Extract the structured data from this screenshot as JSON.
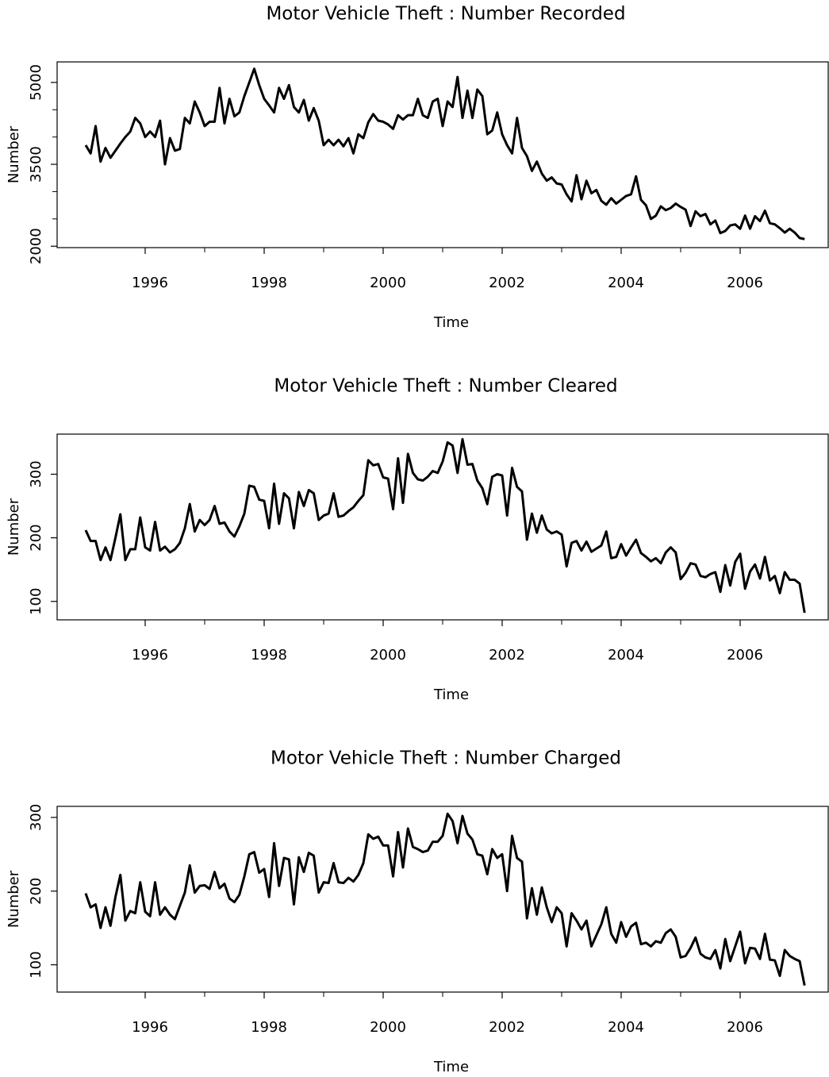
{
  "chart_data": [
    {
      "type": "line",
      "title": "Motor Vehicle Theft : Number Recorded",
      "xlabel": "Time",
      "ylabel": "Number",
      "color": "#000000",
      "xlim": [
        1994.52,
        2007.48
      ],
      "xticks": [
        1996,
        1998,
        2000,
        2002,
        2004,
        2006
      ],
      "xminorticks": [
        1997,
        1999,
        2001,
        2003,
        2005
      ],
      "ylim": [
        1974,
        5376
      ],
      "yticks": [
        2000,
        3500,
        5000
      ],
      "yminorticks": [
        2500,
        3000,
        4000,
        4500
      ],
      "x": [
        1995,
        1995.083,
        1995.167,
        1995.25,
        1995.333,
        1995.417,
        1995.5,
        1995.583,
        1995.667,
        1995.75,
        1995.833,
        1995.917,
        1996,
        1996.083,
        1996.167,
        1996.25,
        1996.333,
        1996.417,
        1996.5,
        1996.583,
        1996.667,
        1996.75,
        1996.833,
        1996.917,
        1997,
        1997.083,
        1997.167,
        1997.25,
        1997.333,
        1997.417,
        1997.5,
        1997.583,
        1997.667,
        1997.75,
        1997.833,
        1997.917,
        1998,
        1998.083,
        1998.167,
        1998.25,
        1998.333,
        1998.417,
        1998.5,
        1998.583,
        1998.667,
        1998.75,
        1998.833,
        1998.917,
        1999,
        1999.083,
        1999.167,
        1999.25,
        1999.333,
        1999.417,
        1999.5,
        1999.583,
        1999.667,
        1999.75,
        1999.833,
        1999.917,
        2000,
        2000.083,
        2000.167,
        2000.25,
        2000.333,
        2000.417,
        2000.5,
        2000.583,
        2000.667,
        2000.75,
        2000.833,
        2000.917,
        2001,
        2001.083,
        2001.167,
        2001.25,
        2001.333,
        2001.417,
        2001.5,
        2001.583,
        2001.667,
        2001.75,
        2001.833,
        2001.917,
        2002,
        2002.083,
        2002.167,
        2002.25,
        2002.333,
        2002.417,
        2002.5,
        2002.583,
        2002.667,
        2002.75,
        2002.833,
        2002.917,
        2003,
        2003.083,
        2003.167,
        2003.25,
        2003.333,
        2003.417,
        2003.5,
        2003.583,
        2003.667,
        2003.75,
        2003.833,
        2003.917,
        2004,
        2004.083,
        2004.167,
        2004.25,
        2004.333,
        2004.417,
        2004.5,
        2004.583,
        2004.667,
        2004.75,
        2004.833,
        2004.917,
        2005,
        2005.083,
        2005.167,
        2005.25,
        2005.333,
        2005.417,
        2005.5,
        2005.583,
        2005.667,
        2005.75,
        2005.833,
        2005.917,
        2006,
        2006.083,
        2006.167,
        2006.25,
        2006.333,
        2006.417,
        2006.5,
        2006.583,
        2006.667,
        2006.75,
        2006.833,
        2006.917,
        2007,
        2007.083
      ],
      "values": [
        3850,
        3700,
        4200,
        3550,
        3800,
        3620,
        3750,
        3880,
        4000,
        4100,
        4350,
        4250,
        4000,
        4100,
        4000,
        4300,
        3500,
        3980,
        3750,
        3780,
        4350,
        4250,
        4650,
        4450,
        4200,
        4280,
        4280,
        4900,
        4250,
        4700,
        4380,
        4450,
        4750,
        5000,
        5250,
        4950,
        4700,
        4580,
        4450,
        4900,
        4700,
        4950,
        4550,
        4450,
        4680,
        4300,
        4530,
        4300,
        3850,
        3950,
        3850,
        3950,
        3830,
        3980,
        3700,
        4050,
        3980,
        4270,
        4420,
        4300,
        4280,
        4230,
        4150,
        4400,
        4320,
        4400,
        4400,
        4700,
        4400,
        4350,
        4650,
        4700,
        4200,
        4650,
        4550,
        5100,
        4350,
        4850,
        4350,
        4870,
        4750,
        4050,
        4120,
        4450,
        4050,
        3850,
        3700,
        4350,
        3800,
        3650,
        3380,
        3550,
        3330,
        3200,
        3260,
        3150,
        3130,
        2950,
        2820,
        3300,
        2860,
        3200,
        2970,
        3030,
        2830,
        2760,
        2880,
        2780,
        2850,
        2920,
        2950,
        3280,
        2850,
        2750,
        2500,
        2560,
        2730,
        2660,
        2700,
        2780,
        2720,
        2670,
        2370,
        2640,
        2550,
        2590,
        2400,
        2470,
        2240,
        2280,
        2380,
        2400,
        2320,
        2560,
        2320,
        2550,
        2460,
        2650,
        2420,
        2400,
        2330,
        2250,
        2320,
        2250,
        2150,
        2130
      ]
    },
    {
      "type": "line",
      "title": "Motor Vehicle Theft : Number Cleared",
      "xlabel": "Time",
      "ylabel": "Number",
      "color": "#000000",
      "xlim": [
        1994.52,
        2007.48
      ],
      "xticks": [
        1996,
        1998,
        2000,
        2002,
        2004,
        2006
      ],
      "xminorticks": [
        1997,
        1999,
        2001,
        2003,
        2005
      ],
      "ylim": [
        71,
        363
      ],
      "yticks": [
        100,
        200,
        300
      ],
      "x": [
        1995,
        1995.083,
        1995.167,
        1995.25,
        1995.333,
        1995.417,
        1995.5,
        1995.583,
        1995.667,
        1995.75,
        1995.833,
        1995.917,
        1996,
        1996.083,
        1996.167,
        1996.25,
        1996.333,
        1996.417,
        1996.5,
        1996.583,
        1996.667,
        1996.75,
        1996.833,
        1996.917,
        1997,
        1997.083,
        1997.167,
        1997.25,
        1997.333,
        1997.417,
        1997.5,
        1997.583,
        1997.667,
        1997.75,
        1997.833,
        1997.917,
        1998,
        1998.083,
        1998.167,
        1998.25,
        1998.333,
        1998.417,
        1998.5,
        1998.583,
        1998.667,
        1998.75,
        1998.833,
        1998.917,
        1999,
        1999.083,
        1999.167,
        1999.25,
        1999.333,
        1999.417,
        1999.5,
        1999.583,
        1999.667,
        1999.75,
        1999.833,
        1999.917,
        2000,
        2000.083,
        2000.167,
        2000.25,
        2000.333,
        2000.417,
        2000.5,
        2000.583,
        2000.667,
        2000.75,
        2000.833,
        2000.917,
        2001,
        2001.083,
        2001.167,
        2001.25,
        2001.333,
        2001.417,
        2001.5,
        2001.583,
        2001.667,
        2001.75,
        2001.833,
        2001.917,
        2002,
        2002.083,
        2002.167,
        2002.25,
        2002.333,
        2002.417,
        2002.5,
        2002.583,
        2002.667,
        2002.75,
        2002.833,
        2002.917,
        2003,
        2003.083,
        2003.167,
        2003.25,
        2003.333,
        2003.417,
        2003.5,
        2003.583,
        2003.667,
        2003.75,
        2003.833,
        2003.917,
        2004,
        2004.083,
        2004.167,
        2004.25,
        2004.333,
        2004.417,
        2004.5,
        2004.583,
        2004.667,
        2004.75,
        2004.833,
        2004.917,
        2005,
        2005.083,
        2005.167,
        2005.25,
        2005.333,
        2005.417,
        2005.5,
        2005.583,
        2005.667,
        2005.75,
        2005.833,
        2005.917,
        2006,
        2006.083,
        2006.167,
        2006.25,
        2006.333,
        2006.417,
        2006.5,
        2006.583,
        2006.667,
        2006.75,
        2006.833,
        2006.917,
        2007,
        2007.083
      ],
      "values": [
        212,
        195,
        195,
        165,
        185,
        165,
        200,
        237,
        165,
        182,
        182,
        232,
        185,
        180,
        225,
        180,
        186,
        177,
        182,
        192,
        215,
        253,
        210,
        228,
        220,
        228,
        250,
        222,
        224,
        210,
        202,
        218,
        238,
        282,
        280,
        260,
        258,
        215,
        285,
        222,
        270,
        262,
        215,
        272,
        250,
        275,
        270,
        228,
        235,
        238,
        270,
        233,
        235,
        242,
        248,
        258,
        267,
        322,
        314,
        316,
        295,
        293,
        245,
        325,
        255,
        332,
        302,
        292,
        290,
        296,
        305,
        302,
        320,
        350,
        345,
        302,
        355,
        315,
        316,
        290,
        278,
        253,
        296,
        300,
        298,
        235,
        310,
        280,
        273,
        197,
        238,
        208,
        235,
        213,
        207,
        210,
        205,
        155,
        192,
        195,
        180,
        194,
        178,
        183,
        188,
        210,
        168,
        170,
        190,
        172,
        185,
        197,
        176,
        170,
        163,
        168,
        160,
        177,
        185,
        177,
        135,
        145,
        160,
        158,
        140,
        138,
        143,
        146,
        115,
        157,
        125,
        162,
        175,
        120,
        147,
        158,
        136,
        170,
        133,
        140,
        113,
        146,
        134,
        134,
        128,
        82
      ]
    },
    {
      "type": "line",
      "title": "Motor Vehicle Theft : Number Charged",
      "xlabel": "Time",
      "ylabel": "Number",
      "color": "#000000",
      "xlim": [
        1994.52,
        2007.48
      ],
      "xticks": [
        1996,
        1998,
        2000,
        2002,
        2004,
        2006
      ],
      "xminorticks": [
        1997,
        1999,
        2001,
        2003,
        2005
      ],
      "ylim": [
        63,
        315
      ],
      "yticks": [
        100,
        200,
        300
      ],
      "x": [
        1995,
        1995.083,
        1995.167,
        1995.25,
        1995.333,
        1995.417,
        1995.5,
        1995.583,
        1995.667,
        1995.75,
        1995.833,
        1995.917,
        1996,
        1996.083,
        1996.167,
        1996.25,
        1996.333,
        1996.417,
        1996.5,
        1996.583,
        1996.667,
        1996.75,
        1996.833,
        1996.917,
        1997,
        1997.083,
        1997.167,
        1997.25,
        1997.333,
        1997.417,
        1997.5,
        1997.583,
        1997.667,
        1997.75,
        1997.833,
        1997.917,
        1998,
        1998.083,
        1998.167,
        1998.25,
        1998.333,
        1998.417,
        1998.5,
        1998.583,
        1998.667,
        1998.75,
        1998.833,
        1998.917,
        1999,
        1999.083,
        1999.167,
        1999.25,
        1999.333,
        1999.417,
        1999.5,
        1999.583,
        1999.667,
        1999.75,
        1999.833,
        1999.917,
        2000,
        2000.083,
        2000.167,
        2000.25,
        2000.333,
        2000.417,
        2000.5,
        2000.583,
        2000.667,
        2000.75,
        2000.833,
        2000.917,
        2001,
        2001.083,
        2001.167,
        2001.25,
        2001.333,
        2001.417,
        2001.5,
        2001.583,
        2001.667,
        2001.75,
        2001.833,
        2001.917,
        2002,
        2002.083,
        2002.167,
        2002.25,
        2002.333,
        2002.417,
        2002.5,
        2002.583,
        2002.667,
        2002.75,
        2002.833,
        2002.917,
        2003,
        2003.083,
        2003.167,
        2003.25,
        2003.333,
        2003.417,
        2003.5,
        2003.583,
        2003.667,
        2003.75,
        2003.833,
        2003.917,
        2004,
        2004.083,
        2004.167,
        2004.25,
        2004.333,
        2004.417,
        2004.5,
        2004.583,
        2004.667,
        2004.75,
        2004.833,
        2004.917,
        2005,
        2005.083,
        2005.167,
        2005.25,
        2005.333,
        2005.417,
        2005.5,
        2005.583,
        2005.667,
        2005.75,
        2005.833,
        2005.917,
        2006,
        2006.083,
        2006.167,
        2006.25,
        2006.333,
        2006.417,
        2006.5,
        2006.583,
        2006.667,
        2006.75,
        2006.833,
        2006.917,
        2007,
        2007.083
      ],
      "values": [
        197,
        178,
        182,
        150,
        178,
        153,
        192,
        222,
        160,
        173,
        170,
        212,
        172,
        166,
        212,
        168,
        178,
        168,
        162,
        180,
        198,
        235,
        198,
        207,
        208,
        203,
        226,
        204,
        210,
        190,
        185,
        195,
        220,
        250,
        253,
        225,
        230,
        192,
        265,
        207,
        245,
        243,
        182,
        246,
        226,
        252,
        248,
        198,
        212,
        211,
        238,
        212,
        211,
        218,
        213,
        222,
        238,
        277,
        271,
        274,
        262,
        262,
        220,
        280,
        232,
        285,
        260,
        257,
        253,
        255,
        267,
        267,
        275,
        305,
        295,
        265,
        302,
        278,
        270,
        250,
        248,
        223,
        257,
        245,
        250,
        200,
        275,
        245,
        240,
        163,
        204,
        168,
        205,
        178,
        158,
        178,
        170,
        125,
        170,
        160,
        148,
        160,
        125,
        140,
        155,
        178,
        142,
        130,
        158,
        138,
        152,
        157,
        128,
        130,
        125,
        132,
        130,
        143,
        148,
        138,
        110,
        112,
        123,
        137,
        115,
        110,
        108,
        120,
        95,
        135,
        105,
        125,
        145,
        102,
        123,
        122,
        108,
        142,
        107,
        106,
        85,
        120,
        112,
        108,
        105,
        72
      ]
    }
  ]
}
